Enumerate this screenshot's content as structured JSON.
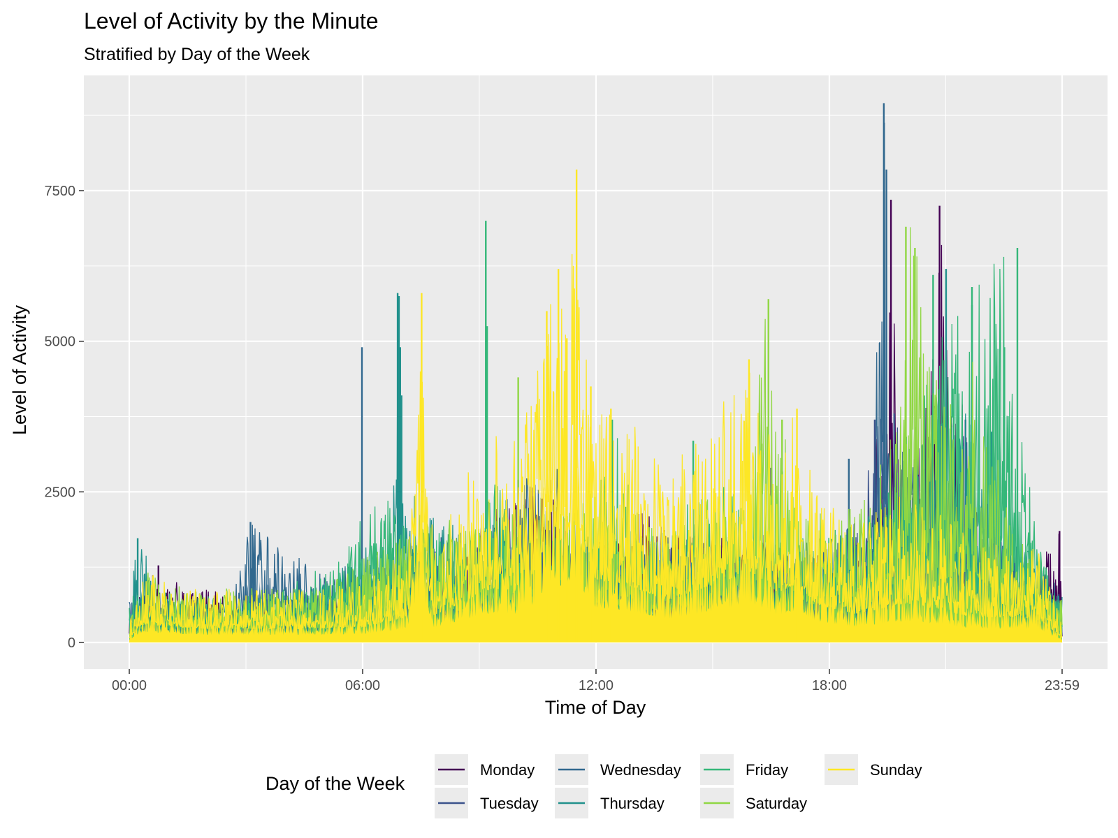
{
  "chart_data": {
    "type": "line",
    "title": "Level of Activity by the Minute",
    "subtitle": "Stratified by Day of the Week",
    "xlabel": "Time of Day",
    "ylabel": "Level of Activity",
    "xlim": [
      0,
      1439
    ],
    "ylim": [
      -420,
      9200
    ],
    "x_ticks": [
      {
        "value": 0,
        "label": "00:00"
      },
      {
        "value": 360,
        "label": "06:00"
      },
      {
        "value": 720,
        "label": "12:00"
      },
      {
        "value": 1080,
        "label": "18:00"
      },
      {
        "value": 1439,
        "label": "23:59"
      }
    ],
    "y_ticks": [
      {
        "value": 0,
        "label": "0"
      },
      {
        "value": 2500,
        "label": "2500"
      },
      {
        "value": 5000,
        "label": "5000"
      },
      {
        "value": 7500,
        "label": "7500"
      }
    ],
    "grid": true,
    "legend": {
      "title": "Day of the Week",
      "position": "bottom"
    },
    "series": [
      {
        "name": "Monday",
        "color": "#440154",
        "points": [
          [
            0,
            600
          ],
          [
            45,
            1280
          ],
          [
            90,
            900
          ],
          [
            240,
            800
          ],
          [
            420,
            900
          ],
          [
            540,
            1900
          ],
          [
            600,
            2700
          ],
          [
            650,
            2700
          ],
          [
            700,
            1600
          ],
          [
            790,
            2200
          ],
          [
            880,
            1700
          ],
          [
            950,
            1900
          ],
          [
            1020,
            1700
          ],
          [
            1060,
            1500
          ],
          [
            1140,
            1400
          ],
          [
            1175,
            7350
          ],
          [
            1190,
            2100
          ],
          [
            1240,
            4700
          ],
          [
            1250,
            7250
          ],
          [
            1290,
            3500
          ],
          [
            1330,
            1300
          ],
          [
            1390,
            1100
          ],
          [
            1435,
            1850
          ],
          [
            1439,
            400
          ]
        ],
        "spikes": [
          [
            45,
            1280
          ],
          [
            600,
            2700
          ],
          [
            650,
            2700
          ],
          [
            1175,
            7350
          ],
          [
            1250,
            7250
          ],
          [
            1240,
            4700
          ],
          [
            1435,
            1850
          ]
        ]
      },
      {
        "name": "Tuesday",
        "color": "#3b528b",
        "points": [
          [
            0,
            500
          ],
          [
            60,
            700
          ],
          [
            180,
            700
          ],
          [
            360,
            1100
          ],
          [
            480,
            1800
          ],
          [
            560,
            1500
          ],
          [
            620,
            2300
          ],
          [
            700,
            1500
          ],
          [
            860,
            1800
          ],
          [
            1000,
            1500
          ],
          [
            1110,
            1600
          ],
          [
            1150,
            3700
          ],
          [
            1180,
            3800
          ],
          [
            1220,
            2200
          ],
          [
            1290,
            3700
          ],
          [
            1330,
            1400
          ],
          [
            1400,
            1000
          ],
          [
            1439,
            500
          ]
        ],
        "spikes": [
          [
            1150,
            3700
          ],
          [
            1180,
            3800
          ],
          [
            1290,
            3700
          ],
          [
            990,
            2900
          ]
        ]
      },
      {
        "name": "Wednesday",
        "color": "#31688e",
        "points": [
          [
            0,
            700
          ],
          [
            30,
            900
          ],
          [
            150,
            600
          ],
          [
            187,
            2000
          ],
          [
            300,
            1100
          ],
          [
            360,
            1400
          ],
          [
            410,
            1600
          ],
          [
            500,
            1700
          ],
          [
            650,
            3100
          ],
          [
            720,
            1700
          ],
          [
            840,
            1800
          ],
          [
            960,
            1700
          ],
          [
            1080,
            1800
          ],
          [
            1140,
            2000
          ],
          [
            1164,
            8950
          ],
          [
            1168,
            7850
          ],
          [
            1175,
            3900
          ],
          [
            1230,
            3200
          ],
          [
            1300,
            2200
          ],
          [
            1380,
            1600
          ],
          [
            1439,
            900
          ]
        ],
        "spikes": [
          [
            187,
            2000
          ],
          [
            359,
            4900
          ],
          [
            1164,
            8950
          ],
          [
            1168,
            7850
          ],
          [
            1110,
            3050
          ]
        ]
      },
      {
        "name": "Thursday",
        "color": "#21918c",
        "points": [
          [
            0,
            1200
          ],
          [
            15,
            1700
          ],
          [
            60,
            700
          ],
          [
            180,
            700
          ],
          [
            300,
            1000
          ],
          [
            400,
            2000
          ],
          [
            415,
            5800
          ],
          [
            425,
            2600
          ],
          [
            500,
            2000
          ],
          [
            600,
            1700
          ],
          [
            700,
            1800
          ],
          [
            860,
            1700
          ],
          [
            1000,
            1600
          ],
          [
            1100,
            1800
          ],
          [
            1180,
            2500
          ],
          [
            1240,
            3700
          ],
          [
            1290,
            3900
          ],
          [
            1330,
            2600
          ],
          [
            1380,
            1700
          ],
          [
            1439,
            800
          ]
        ],
        "spikes": [
          [
            13,
            1730
          ],
          [
            414,
            5800
          ],
          [
            416,
            5750
          ],
          [
            418,
            4900
          ],
          [
            420,
            4100
          ],
          [
            1260,
            6200
          ],
          [
            1300,
            5600
          ],
          [
            1330,
            3500
          ]
        ]
      },
      {
        "name": "Friday",
        "color": "#35b779",
        "points": [
          [
            0,
            800
          ],
          [
            60,
            850
          ],
          [
            200,
            800
          ],
          [
            320,
            1400
          ],
          [
            380,
            2500
          ],
          [
            460,
            1900
          ],
          [
            550,
            2000
          ],
          [
            548,
            3400
          ],
          [
            600,
            1800
          ],
          [
            710,
            1800
          ],
          [
            745,
            3700
          ],
          [
            800,
            1700
          ],
          [
            870,
            2400
          ],
          [
            920,
            2600
          ],
          [
            1000,
            1700
          ],
          [
            1100,
            1900
          ],
          [
            1160,
            2200
          ],
          [
            1240,
            5000
          ],
          [
            1300,
            5900
          ],
          [
            1350,
            6550
          ],
          [
            1360,
            4900
          ],
          [
            1400,
            1700
          ],
          [
            1439,
            500
          ]
        ],
        "spikes": [
          [
            550,
            7000
          ],
          [
            552,
            5250
          ],
          [
            745,
            3700
          ],
          [
            870,
            3350
          ],
          [
            1240,
            6100
          ],
          [
            1300,
            5900
          ],
          [
            1370,
            6550
          ],
          [
            1350,
            4900
          ]
        ]
      },
      {
        "name": "Saturday",
        "color": "#90d743",
        "points": [
          [
            0,
            500
          ],
          [
            30,
            1200
          ],
          [
            120,
            900
          ],
          [
            300,
            900
          ],
          [
            420,
            1900
          ],
          [
            600,
            2300
          ],
          [
            700,
            2600
          ],
          [
            800,
            2100
          ],
          [
            900,
            2400
          ],
          [
            960,
            2900
          ],
          [
            980,
            5700
          ],
          [
            1000,
            3700
          ],
          [
            1060,
            2300
          ],
          [
            1140,
            2400
          ],
          [
            1190,
            4300
          ],
          [
            1205,
            6900
          ],
          [
            1215,
            6550
          ],
          [
            1250,
            4000
          ],
          [
            1300,
            4700
          ],
          [
            1380,
            1600
          ],
          [
            1439,
            700
          ]
        ],
        "spikes": [
          [
            600,
            4400
          ],
          [
            986,
            5700
          ],
          [
            976,
            3300
          ],
          [
            1007,
            3700
          ],
          [
            1198,
            6900
          ],
          [
            1212,
            6550
          ]
        ]
      },
      {
        "name": "Sunday",
        "color": "#fde725",
        "points": [
          [
            0,
            300
          ],
          [
            20,
            1200
          ],
          [
            120,
            900
          ],
          [
            270,
            900
          ],
          [
            360,
            1000
          ],
          [
            430,
            1700
          ],
          [
            450,
            5800
          ],
          [
            470,
            1800
          ],
          [
            560,
            3600
          ],
          [
            600,
            3400
          ],
          [
            640,
            5500
          ],
          [
            690,
            7850
          ],
          [
            710,
            4200
          ],
          [
            760,
            3900
          ],
          [
            830,
            2800
          ],
          [
            960,
            4700
          ],
          [
            1000,
            3300
          ],
          [
            1030,
            3900
          ],
          [
            1060,
            2500
          ],
          [
            1120,
            1900
          ],
          [
            1200,
            2600
          ],
          [
            1300,
            1700
          ],
          [
            1400,
            1600
          ],
          [
            1439,
            300
          ]
        ],
        "spikes": [
          [
            451,
            5800
          ],
          [
            644,
            5500
          ],
          [
            662,
            6200
          ],
          [
            675,
            5050
          ],
          [
            690,
            7850
          ],
          [
            712,
            4250
          ],
          [
            743,
            3880
          ],
          [
            956,
            4700
          ],
          [
            1030,
            3880
          ]
        ]
      }
    ]
  }
}
